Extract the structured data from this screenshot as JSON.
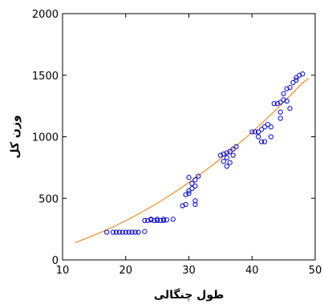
{
  "chart_data": {
    "type": "scatter",
    "title": "",
    "xlabel": "طول چنگالی",
    "ylabel": "وزن کل",
    "xlim": [
      10,
      50
    ],
    "ylim": [
      0,
      2000
    ],
    "xticks": [
      10,
      20,
      30,
      40,
      50
    ],
    "yticks": [
      0,
      500,
      1000,
      1500,
      2000
    ],
    "grid": false,
    "legend": "none",
    "colors": {
      "points": "#1414d2",
      "curve": "#f07800",
      "axes": "#000000"
    },
    "series": [
      {
        "type": "scatter",
        "points": [
          [
            17.0,
            225
          ],
          [
            18.0,
            225
          ],
          [
            18.5,
            225
          ],
          [
            19.0,
            225
          ],
          [
            19.5,
            225
          ],
          [
            20.0,
            225
          ],
          [
            20.5,
            225
          ],
          [
            21.0,
            225
          ],
          [
            21.5,
            225
          ],
          [
            22.0,
            225
          ],
          [
            23.0,
            230
          ],
          [
            23.0,
            320
          ],
          [
            23.5,
            320
          ],
          [
            24.0,
            325
          ],
          [
            24.0,
            330
          ],
          [
            24.5,
            320
          ],
          [
            25.0,
            330
          ],
          [
            25.0,
            320
          ],
          [
            25.5,
            320
          ],
          [
            26.0,
            330
          ],
          [
            26.0,
            320
          ],
          [
            26.5,
            325
          ],
          [
            27.5,
            330
          ],
          [
            29.0,
            440
          ],
          [
            29.5,
            450
          ],
          [
            29.5,
            530
          ],
          [
            30.0,
            540
          ],
          [
            30.0,
            560
          ],
          [
            30.0,
            670
          ],
          [
            30.5,
            580
          ],
          [
            30.5,
            620
          ],
          [
            31.0,
            600
          ],
          [
            31.0,
            650
          ],
          [
            31.0,
            450
          ],
          [
            31.0,
            480
          ],
          [
            31.5,
            680
          ],
          [
            35.0,
            850
          ],
          [
            35.5,
            800
          ],
          [
            35.5,
            860
          ],
          [
            36.0,
            830
          ],
          [
            36.0,
            760
          ],
          [
            36.0,
            870
          ],
          [
            36.5,
            880
          ],
          [
            36.5,
            790
          ],
          [
            37.0,
            900
          ],
          [
            37.0,
            850
          ],
          [
            37.5,
            920
          ],
          [
            40.0,
            1040
          ],
          [
            40.5,
            1040
          ],
          [
            41.0,
            1040
          ],
          [
            41.0,
            1000
          ],
          [
            41.5,
            1060
          ],
          [
            41.5,
            960
          ],
          [
            42.0,
            1080
          ],
          [
            42.0,
            960
          ],
          [
            42.5,
            1100
          ],
          [
            43.0,
            1000
          ],
          [
            43.0,
            1080
          ],
          [
            43.5,
            1270
          ],
          [
            44.0,
            1270
          ],
          [
            44.5,
            1280
          ],
          [
            44.5,
            1150
          ],
          [
            44.5,
            1200
          ],
          [
            45.0,
            1300
          ],
          [
            45.0,
            1350
          ],
          [
            45.5,
            1290
          ],
          [
            45.5,
            1390
          ],
          [
            46.0,
            1400
          ],
          [
            46.0,
            1230
          ],
          [
            46.5,
            1440
          ],
          [
            47.0,
            1480
          ],
          [
            47.0,
            1460
          ],
          [
            47.5,
            1500
          ],
          [
            48.0,
            1510
          ]
        ]
      },
      {
        "type": "line",
        "points": [
          [
            12,
            140
          ],
          [
            14,
            180
          ],
          [
            16,
            222
          ],
          [
            18,
            268
          ],
          [
            20,
            318
          ],
          [
            22,
            372
          ],
          [
            24,
            430
          ],
          [
            26,
            492
          ],
          [
            28,
            558
          ],
          [
            30,
            628
          ],
          [
            32,
            702
          ],
          [
            34,
            780
          ],
          [
            36,
            862
          ],
          [
            38,
            948
          ],
          [
            40,
            1038
          ],
          [
            42,
            1132
          ],
          [
            44,
            1230
          ],
          [
            46,
            1332
          ],
          [
            48,
            1438
          ],
          [
            49,
            1475
          ]
        ]
      }
    ]
  }
}
